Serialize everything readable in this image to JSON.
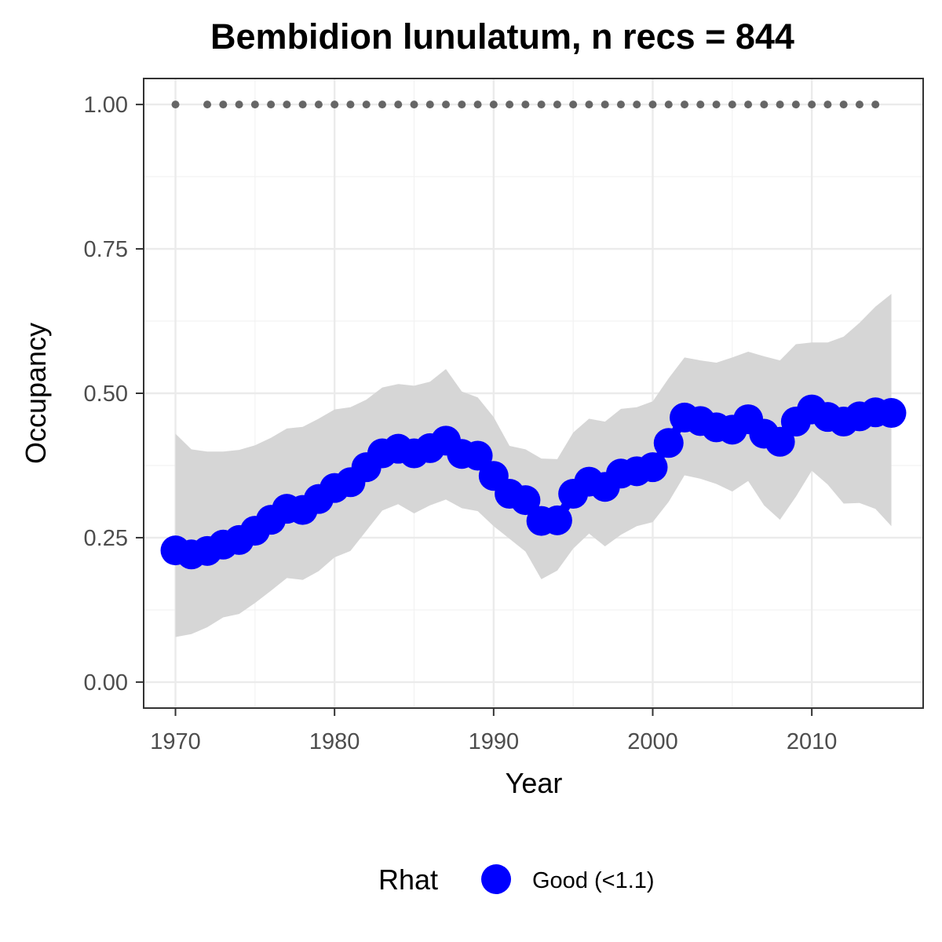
{
  "chart_data": {
    "type": "line",
    "title": "Bembidion lunulatum, n recs = 844",
    "xlabel": "Year",
    "ylabel": "Occupancy",
    "xlim": [
      1968,
      2017
    ],
    "ylim": [
      -0.045,
      1.045
    ],
    "x_ticks": [
      1970,
      1980,
      1990,
      2000,
      2010
    ],
    "x_tick_labels": [
      "1970",
      "1980",
      "1990",
      "2000",
      "2010"
    ],
    "y_ticks": [
      0,
      0.25,
      0.5,
      0.75,
      1
    ],
    "y_tick_labels": [
      "0.00",
      "0.25",
      "0.50",
      "0.75",
      "1.00"
    ],
    "grid": true,
    "series": [
      {
        "name": "Good (<1.1)",
        "kind": "mean-with-ribbon",
        "x": [
          1970,
          1971,
          1972,
          1973,
          1974,
          1975,
          1976,
          1977,
          1978,
          1979,
          1980,
          1981,
          1982,
          1983,
          1984,
          1985,
          1986,
          1987,
          1988,
          1989,
          1990,
          1991,
          1992,
          1993,
          1994,
          1995,
          1996,
          1997,
          1998,
          1999,
          2000,
          2001,
          2002,
          2003,
          2004,
          2005,
          2006,
          2007,
          2008,
          2009,
          2010,
          2011,
          2012,
          2013,
          2014,
          2015
        ],
        "y": [
          0.228,
          0.221,
          0.227,
          0.238,
          0.246,
          0.262,
          0.281,
          0.3,
          0.298,
          0.317,
          0.336,
          0.346,
          0.372,
          0.396,
          0.404,
          0.396,
          0.405,
          0.418,
          0.395,
          0.392,
          0.357,
          0.326,
          0.315,
          0.279,
          0.28,
          0.326,
          0.347,
          0.338,
          0.361,
          0.365,
          0.372,
          0.414,
          0.458,
          0.452,
          0.441,
          0.437,
          0.455,
          0.43,
          0.416,
          0.451,
          0.472,
          0.459,
          0.451,
          0.46,
          0.467,
          0.466
        ],
        "lower": [
          0.078,
          0.083,
          0.095,
          0.112,
          0.118,
          0.137,
          0.158,
          0.18,
          0.177,
          0.192,
          0.216,
          0.227,
          0.262,
          0.297,
          0.308,
          0.292,
          0.306,
          0.316,
          0.301,
          0.296,
          0.27,
          0.248,
          0.226,
          0.178,
          0.193,
          0.231,
          0.257,
          0.235,
          0.255,
          0.27,
          0.277,
          0.312,
          0.358,
          0.352,
          0.343,
          0.33,
          0.348,
          0.306,
          0.281,
          0.321,
          0.366,
          0.342,
          0.309,
          0.31,
          0.3,
          0.27
        ],
        "upper": [
          0.43,
          0.403,
          0.399,
          0.399,
          0.402,
          0.41,
          0.423,
          0.439,
          0.442,
          0.456,
          0.472,
          0.476,
          0.489,
          0.51,
          0.516,
          0.513,
          0.52,
          0.542,
          0.503,
          0.493,
          0.459,
          0.409,
          0.403,
          0.387,
          0.386,
          0.432,
          0.456,
          0.451,
          0.473,
          0.476,
          0.486,
          0.526,
          0.562,
          0.557,
          0.553,
          0.562,
          0.572,
          0.564,
          0.557,
          0.585,
          0.588,
          0.588,
          0.598,
          0.622,
          0.65,
          0.672
        ],
        "color": "#0000ff",
        "ribbon_color": "#d6d6d6"
      },
      {
        "kind": "record-dots",
        "x": [
          1970,
          1972,
          1973,
          1974,
          1975,
          1976,
          1977,
          1978,
          1979,
          1980,
          1981,
          1982,
          1983,
          1984,
          1985,
          1986,
          1987,
          1988,
          1989,
          1990,
          1991,
          1992,
          1993,
          1994,
          1995,
          1996,
          1997,
          1998,
          1999,
          2000,
          2001,
          2002,
          2003,
          2004,
          2005,
          2006,
          2007,
          2008,
          2009,
          2010,
          2011,
          2012,
          2013,
          2014
        ],
        "y": 1.0,
        "color": "#666666"
      }
    ],
    "legend": {
      "title": "Rhat",
      "position": "bottom",
      "entries": [
        {
          "label": "Good (<1.1)",
          "color": "#0000ff"
        }
      ]
    }
  }
}
